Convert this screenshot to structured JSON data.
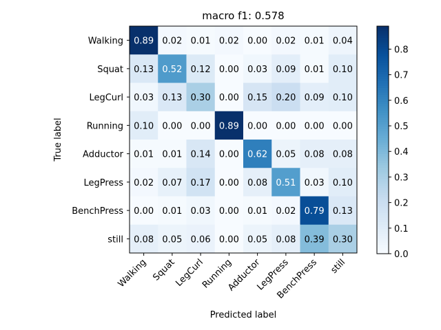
{
  "chart_data": {
    "type": "heatmap",
    "title": "macro f1: 0.578",
    "xlabel": "Predicted label",
    "ylabel": "True label",
    "x_categories": [
      "Walking",
      "Squat",
      "LegCurl",
      "Running",
      "Adductor",
      "LegPress",
      "BenchPress",
      "still"
    ],
    "y_categories": [
      "Walking",
      "Squat",
      "LegCurl",
      "Running",
      "Adductor",
      "LegPress",
      "BenchPress",
      "still"
    ],
    "values": [
      [
        0.89,
        0.02,
        0.01,
        0.02,
        0.0,
        0.02,
        0.01,
        0.04
      ],
      [
        0.13,
        0.52,
        0.12,
        0.0,
        0.03,
        0.09,
        0.01,
        0.1
      ],
      [
        0.03,
        0.13,
        0.3,
        0.0,
        0.15,
        0.2,
        0.09,
        0.1
      ],
      [
        0.1,
        0.0,
        0.0,
        0.89,
        0.0,
        0.0,
        0.0,
        0.0
      ],
      [
        0.01,
        0.01,
        0.14,
        0.0,
        0.62,
        0.05,
        0.08,
        0.08
      ],
      [
        0.02,
        0.07,
        0.17,
        0.0,
        0.08,
        0.51,
        0.03,
        0.1
      ],
      [
        0.0,
        0.01,
        0.03,
        0.0,
        0.01,
        0.02,
        0.79,
        0.13
      ],
      [
        0.08,
        0.05,
        0.06,
        0.0,
        0.05,
        0.08,
        0.39,
        0.3
      ]
    ],
    "value_format": "2 decimals",
    "colormap": "Blues",
    "color_range": [
      0.0,
      0.89
    ],
    "colorbar": {
      "ticks": [
        "0.0",
        "0.1",
        "0.2",
        "0.3",
        "0.4",
        "0.5",
        "0.6",
        "0.7",
        "0.8"
      ],
      "position": "right"
    },
    "grid": false
  }
}
